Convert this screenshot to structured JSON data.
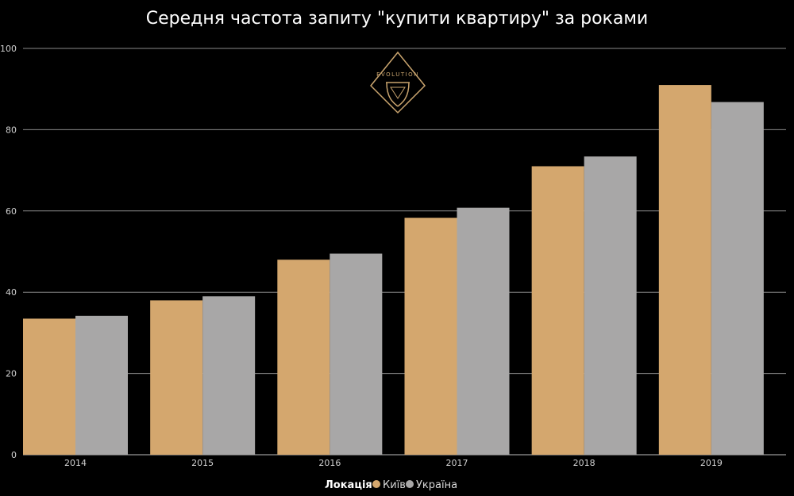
{
  "chart_data": {
    "type": "bar",
    "title": "Середня частота запиту \"купити квартиру\" за роками",
    "categories": [
      "2014",
      "2015",
      "2016",
      "2017",
      "2018",
      "2019"
    ],
    "series": [
      {
        "name": "Київ",
        "color": "#d4a76e",
        "values": [
          33.5,
          38,
          48,
          58.3,
          71,
          91
        ]
      },
      {
        "name": "Україна",
        "color": "#a8a7a7",
        "values": [
          34.2,
          39,
          49.5,
          60.8,
          73.4,
          86.8
        ]
      }
    ],
    "ylim": [
      0,
      100
    ],
    "yticks": [
      "0",
      "20",
      "40",
      "60",
      "80",
      "100"
    ],
    "grid": true,
    "legend": {
      "title": "Локація",
      "placement": "bottom-center"
    }
  },
  "logo": {
    "text": "EVOLUTION",
    "name": "evolution-logo"
  }
}
